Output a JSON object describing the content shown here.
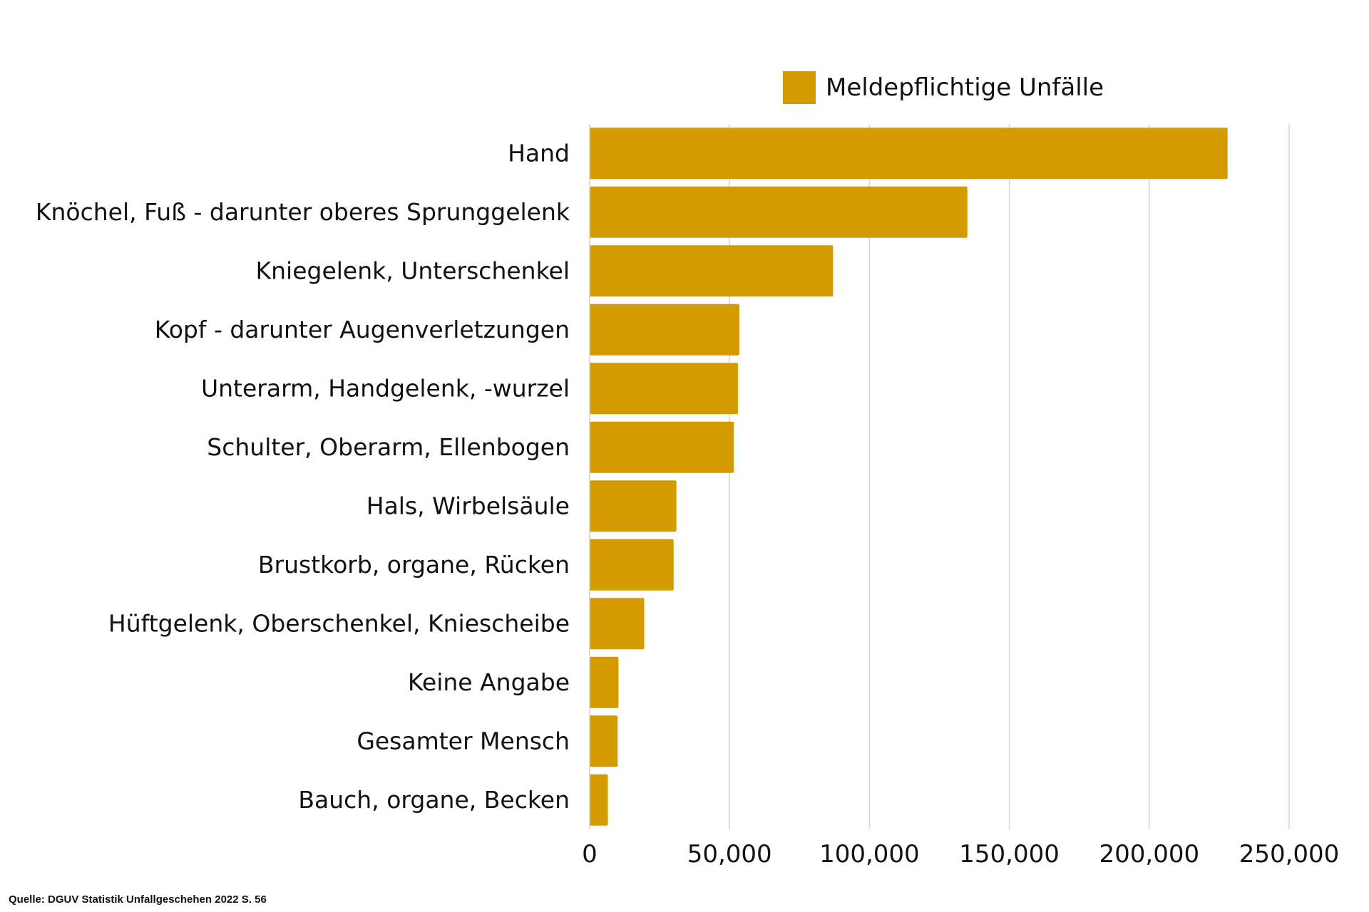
{
  "chart_data": {
    "type": "bar",
    "orientation": "horizontal",
    "title": "",
    "xlabel": "",
    "ylabel": "",
    "categories": [
      "Hand",
      "Knöchel, Fuß - darunter oberes Sprunggelenk",
      "Kniegelenk, Unterschenkel",
      "Kopf - darunter Augenverletzungen",
      "Unterarm, Handgelenk, -wurzel",
      "Schulter, Oberarm, Ellenbogen",
      "Hals, Wirbelsäule",
      "Brustkorb, organe, Rücken",
      "Hüftgelenk, Oberschenkel, Kniescheibe",
      "Keine Angabe",
      "Gesamter Mensch",
      "Bauch, organe, Becken"
    ],
    "series": [
      {
        "name": "Meldepflichtige Unfälle",
        "color": "#D49B00",
        "values": [
          228000,
          135000,
          87000,
          53500,
          53000,
          51500,
          31000,
          30000,
          19500,
          10300,
          10000,
          6500
        ]
      }
    ],
    "xlim": [
      0,
      250000
    ],
    "x_ticks": [
      0,
      50000,
      100000,
      150000,
      200000,
      250000
    ],
    "x_tick_labels": [
      "0",
      "50,000",
      "100,000",
      "150,000",
      "200,000",
      "250,000"
    ],
    "grid": "vertical",
    "legend_position": "top",
    "source": "Quelle: DGUV Statistik Unfallgeschehen 2022 S. 56"
  }
}
